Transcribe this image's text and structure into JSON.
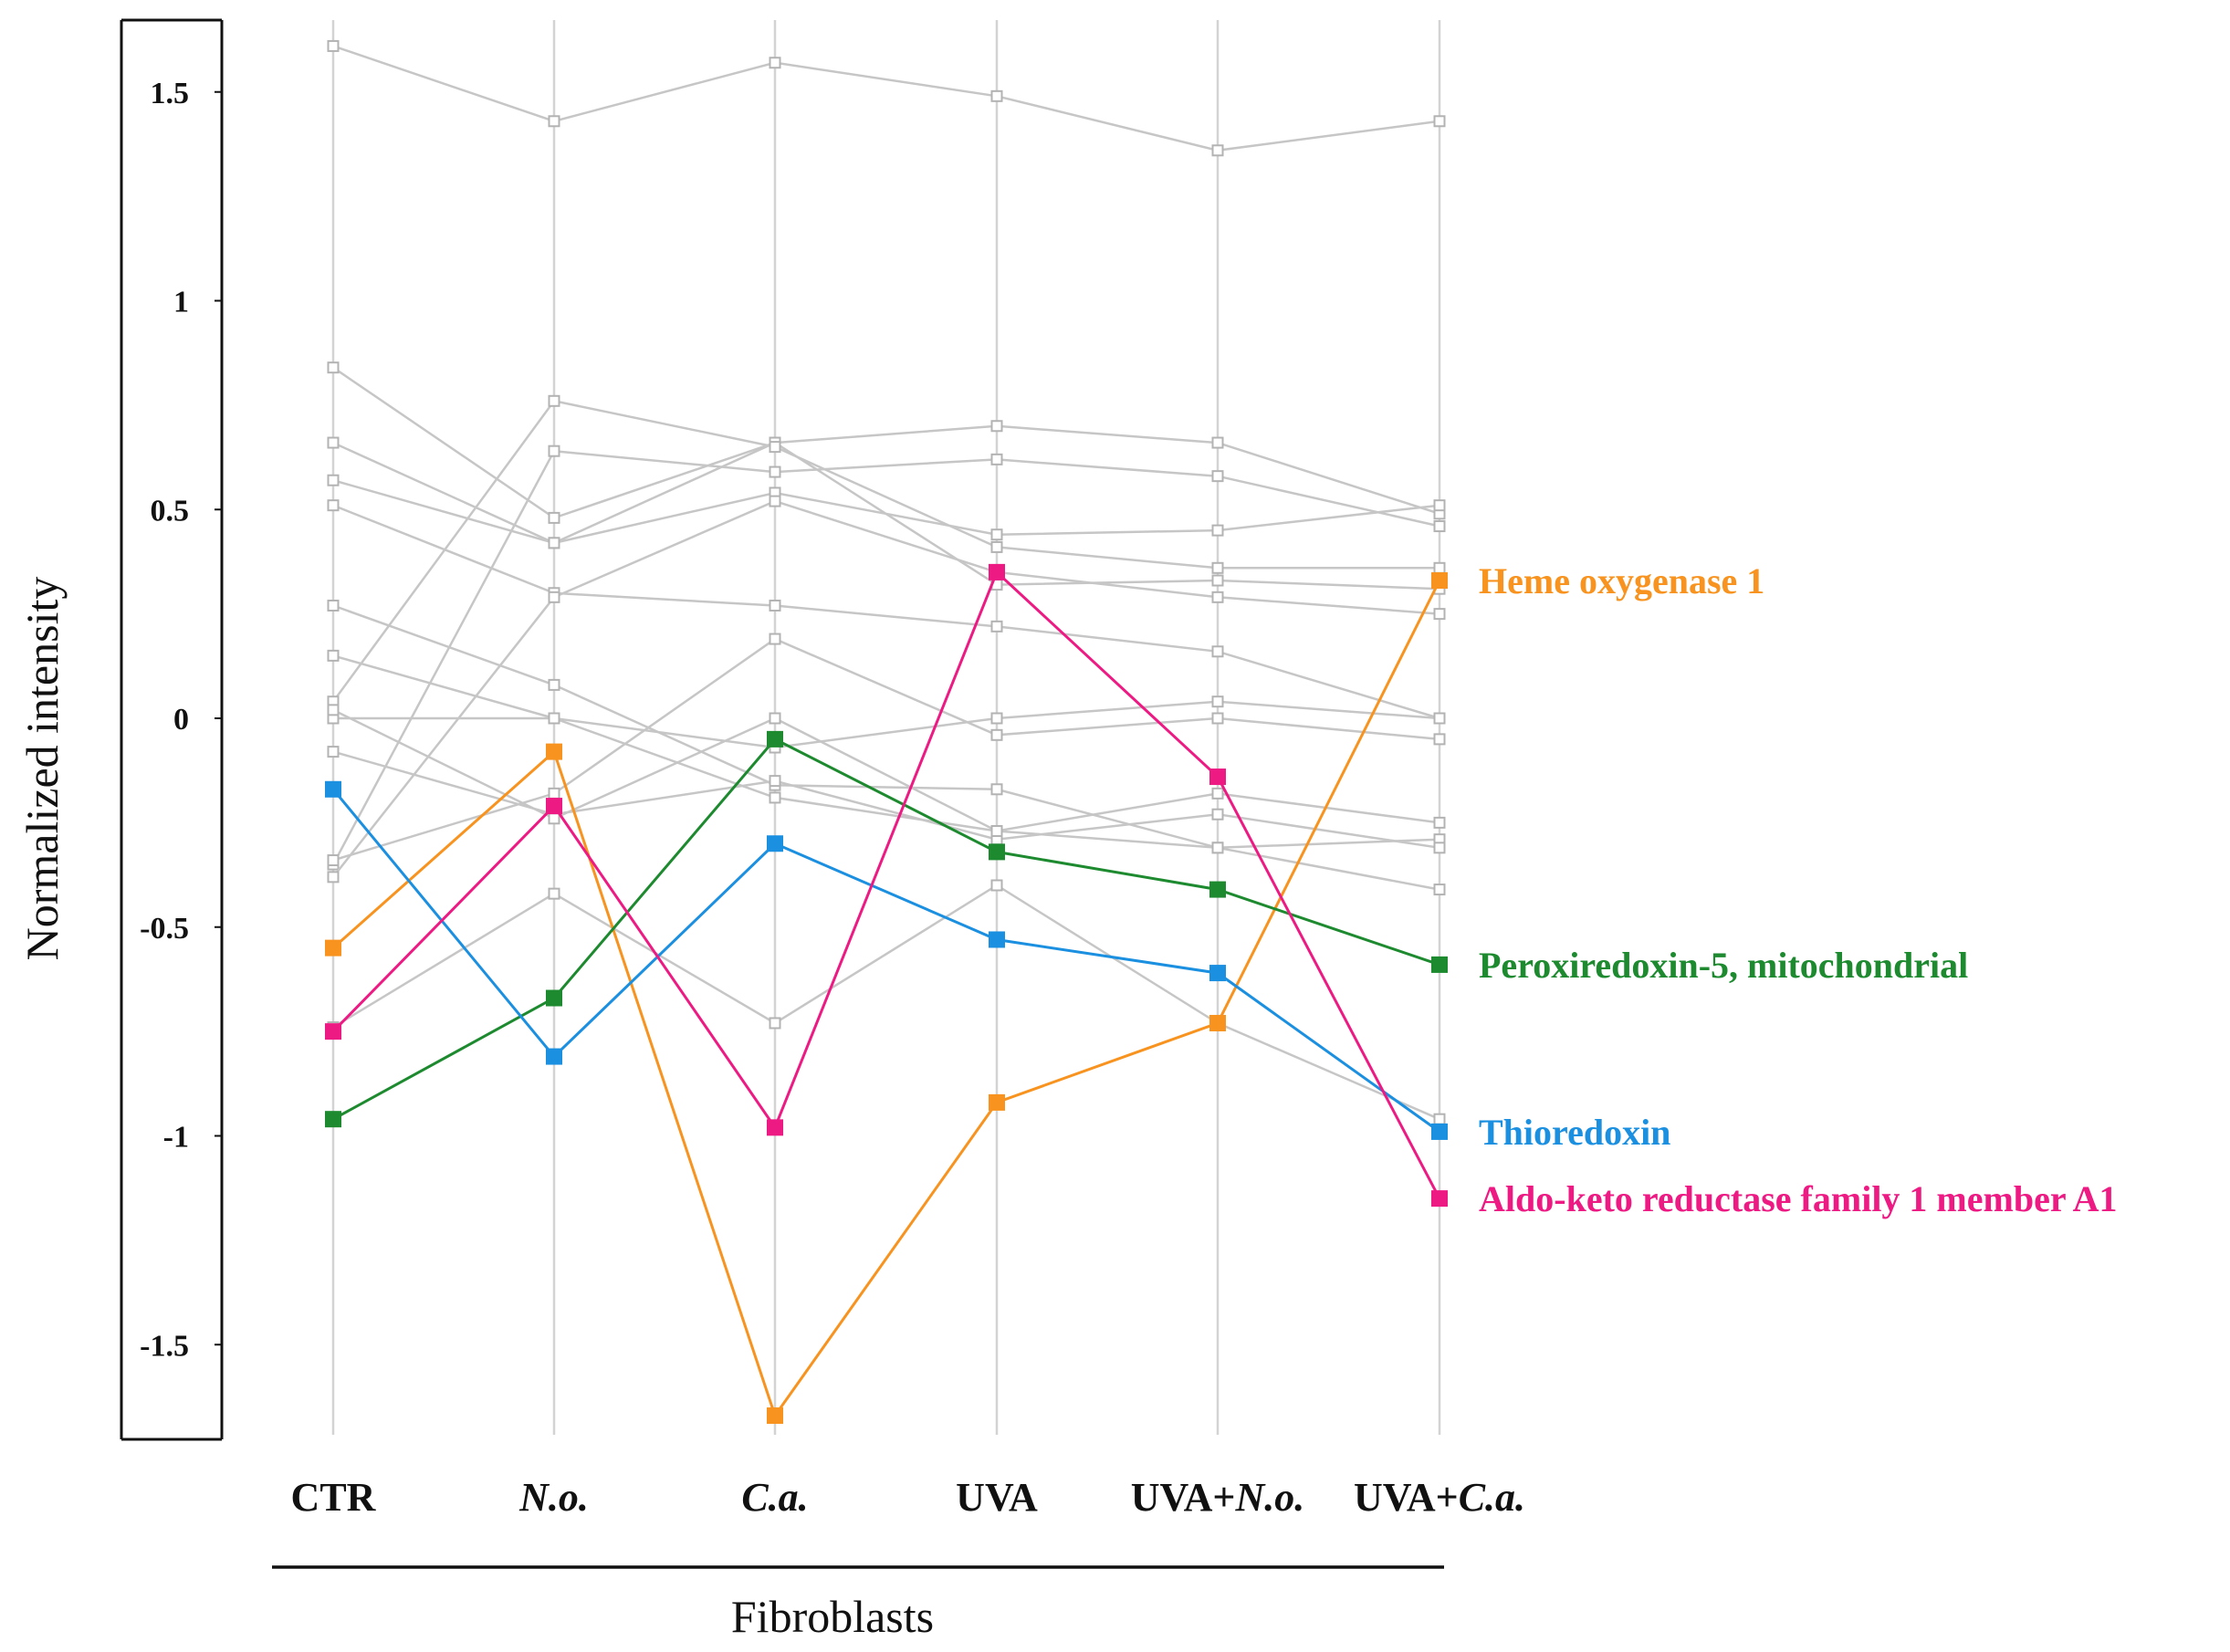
{
  "chart_data": {
    "type": "line",
    "title": "",
    "ylabel": "Normalized intensity",
    "xlabel": "Fibroblasts",
    "ylim": [
      -1.72,
      1.68
    ],
    "yticks": [
      -1.5,
      -1,
      -0.5,
      0,
      0.5,
      1,
      1.5
    ],
    "ytick_labels": [
      "-1.5",
      "-1",
      "-0.5",
      "0",
      "0.5",
      "1",
      "1.5"
    ],
    "categories": [
      {
        "prefix": "CTR",
        "italic": ""
      },
      {
        "prefix": "",
        "italic": "N.o."
      },
      {
        "prefix": "",
        "italic": "C.a."
      },
      {
        "prefix": "UVA",
        "italic": ""
      },
      {
        "prefix": "UVA+",
        "italic": "N.o."
      },
      {
        "prefix": "UVA+",
        "italic": "C.a."
      }
    ],
    "background_color": "#c6c6c6",
    "background_series": [
      [
        1.61,
        1.43,
        1.57,
        1.49,
        1.36,
        1.43
      ],
      [
        0.84,
        0.48,
        0.66,
        0.7,
        0.66,
        0.49
      ],
      [
        0.66,
        0.42,
        0.54,
        0.44,
        0.45,
        0.51
      ],
      [
        0.57,
        0.42,
        0.66,
        0.32,
        0.33,
        0.31
      ],
      [
        0.51,
        0.3,
        0.27,
        0.22,
        0.16,
        0.0
      ],
      [
        0.27,
        0.08,
        -0.16,
        -0.17,
        -0.31,
        -0.41
      ],
      [
        0.15,
        0.0,
        -0.19,
        -0.27,
        -0.31,
        -0.29
      ],
      [
        0.04,
        0.76,
        0.65,
        0.41,
        0.36,
        0.36
      ],
      [
        0.0,
        0.0,
        -0.07,
        0.0,
        0.04,
        0.0
      ],
      [
        -0.08,
        -0.23,
        -0.15,
        -0.29,
        -0.23,
        -0.31
      ],
      [
        -0.35,
        0.64,
        0.59,
        0.62,
        0.58,
        0.46
      ],
      [
        -0.38,
        0.29,
        0.52,
        0.35,
        0.29,
        0.25
      ],
      [
        0.02,
        -0.24,
        0.0,
        -0.27,
        -0.18,
        -0.25
      ],
      [
        -0.74,
        -0.42,
        -0.73,
        -0.4,
        -0.73,
        -0.96
      ],
      [
        -0.34,
        -0.18,
        0.19,
        -0.04,
        0.0,
        -0.05
      ]
    ],
    "series": [
      {
        "name": "Heme oxygenase 1",
        "color": "#f7931e",
        "values": [
          -0.55,
          -0.08,
          -1.67,
          -0.92,
          -0.73,
          0.33
        ]
      },
      {
        "name": "Peroxiredoxin-5, mitochondrial",
        "color": "#1d8a2f",
        "values": [
          -0.96,
          -0.67,
          -0.05,
          -0.32,
          -0.41,
          -0.59
        ]
      },
      {
        "name": "Thioredoxin",
        "color": "#1b8fe0",
        "values": [
          -0.17,
          -0.81,
          -0.3,
          -0.53,
          -0.61,
          -0.99
        ]
      },
      {
        "name": "Aldo-keto reductase family 1 member A1",
        "color": "#ee1a84",
        "values": [
          -0.75,
          -0.21,
          -0.98,
          0.35,
          -0.14,
          -1.15
        ]
      }
    ]
  }
}
